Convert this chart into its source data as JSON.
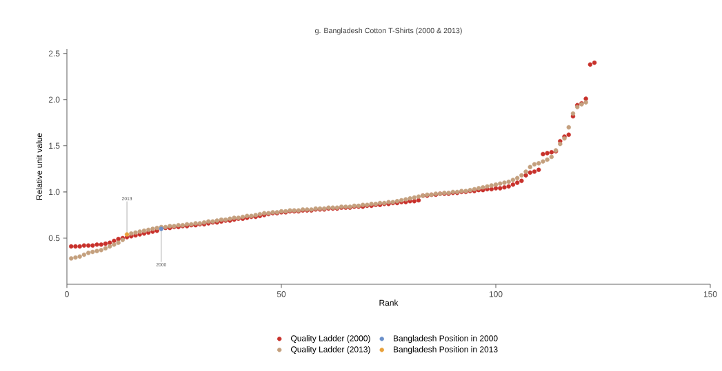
{
  "chart_data": {
    "type": "scatter",
    "title": "g. Bangladesh Cotton T-Shirts (2000 & 2013)",
    "xlabel": "Rank",
    "ylabel": "Relative unit value",
    "xlim": [
      0,
      150
    ],
    "ylim": [
      0,
      2.55
    ],
    "xticks": [
      0,
      50,
      100,
      150
    ],
    "yticks": [
      0.5,
      {
        "value": 1,
        "label": "1.0"
      },
      1.5,
      {
        "value": 2,
        "label": "2.0"
      },
      2.5
    ],
    "marker": "circle",
    "grid": false,
    "legend": "bottom",
    "series": [
      {
        "name": "Quality Ladder (2000)",
        "color": "#c8312b",
        "x": [
          1,
          2,
          3,
          4,
          5,
          6,
          7,
          8,
          9,
          10,
          11,
          12,
          13,
          14,
          15,
          16,
          17,
          18,
          19,
          20,
          21,
          23,
          24,
          25,
          26,
          27,
          28,
          29,
          30,
          31,
          32,
          33,
          34,
          35,
          36,
          37,
          38,
          39,
          40,
          41,
          42,
          43,
          44,
          45,
          46,
          47,
          48,
          49,
          50,
          51,
          52,
          53,
          54,
          55,
          56,
          57,
          58,
          59,
          60,
          61,
          62,
          63,
          64,
          65,
          66,
          67,
          68,
          69,
          70,
          71,
          72,
          73,
          74,
          75,
          76,
          77,
          78,
          79,
          80,
          81,
          82,
          83,
          84,
          85,
          86,
          87,
          88,
          89,
          90,
          91,
          92,
          93,
          94,
          95,
          96,
          97,
          98,
          99,
          100,
          101,
          102,
          103,
          104,
          105,
          106,
          107,
          108,
          109,
          110,
          111,
          112,
          113,
          114,
          115,
          116,
          117,
          118,
          119,
          120,
          121,
          122,
          123
        ],
        "values": [
          0.41,
          0.41,
          0.41,
          0.42,
          0.42,
          0.42,
          0.43,
          0.43,
          0.44,
          0.45,
          0.47,
          0.49,
          0.5,
          0.51,
          0.52,
          0.53,
          0.54,
          0.55,
          0.56,
          0.57,
          0.58,
          0.61,
          0.61,
          0.62,
          0.62,
          0.63,
          0.63,
          0.64,
          0.64,
          0.65,
          0.65,
          0.66,
          0.67,
          0.67,
          0.68,
          0.69,
          0.69,
          0.7,
          0.71,
          0.71,
          0.72,
          0.73,
          0.73,
          0.74,
          0.75,
          0.76,
          0.77,
          0.77,
          0.78,
          0.78,
          0.79,
          0.79,
          0.79,
          0.8,
          0.8,
          0.8,
          0.81,
          0.81,
          0.81,
          0.82,
          0.82,
          0.82,
          0.83,
          0.83,
          0.83,
          0.84,
          0.84,
          0.84,
          0.85,
          0.85,
          0.86,
          0.86,
          0.87,
          0.87,
          0.88,
          0.88,
          0.89,
          0.89,
          0.9,
          0.9,
          0.91,
          0.96,
          0.96,
          0.97,
          0.97,
          0.98,
          0.98,
          0.98,
          0.99,
          0.99,
          1.0,
          1.0,
          1.01,
          1.01,
          1.02,
          1.02,
          1.03,
          1.03,
          1.04,
          1.04,
          1.05,
          1.06,
          1.08,
          1.1,
          1.12,
          1.18,
          1.21,
          1.22,
          1.24,
          1.41,
          1.42,
          1.43,
          1.44,
          1.55,
          1.6,
          1.62,
          1.82,
          1.94,
          1.96,
          2.01,
          2.38,
          2.4
        ]
      },
      {
        "name": "Bangladesh Position in 2000",
        "color": "#6a8fc9",
        "x": [
          22
        ],
        "values": [
          0.6
        ]
      },
      {
        "name": "Quality Ladder (2013)",
        "color": "#c4a07e",
        "x": [
          1,
          2,
          3,
          4,
          5,
          6,
          7,
          8,
          9,
          10,
          11,
          12,
          13,
          15,
          16,
          17,
          18,
          19,
          20,
          21,
          22,
          23,
          24,
          25,
          26,
          27,
          28,
          29,
          30,
          31,
          32,
          33,
          34,
          35,
          36,
          37,
          38,
          39,
          40,
          41,
          42,
          43,
          44,
          45,
          46,
          47,
          48,
          49,
          50,
          51,
          52,
          53,
          54,
          55,
          56,
          57,
          58,
          59,
          60,
          61,
          62,
          63,
          64,
          65,
          66,
          67,
          68,
          69,
          70,
          71,
          72,
          73,
          74,
          75,
          76,
          77,
          78,
          79,
          80,
          81,
          82,
          83,
          84,
          85,
          86,
          87,
          88,
          89,
          90,
          91,
          92,
          93,
          94,
          95,
          96,
          97,
          98,
          99,
          100,
          101,
          102,
          103,
          104,
          105,
          106,
          107,
          108,
          109,
          110,
          111,
          112,
          113,
          114,
          115,
          116,
          117,
          118,
          119,
          120,
          121
        ],
        "values": [
          0.28,
          0.29,
          0.3,
          0.32,
          0.34,
          0.35,
          0.36,
          0.37,
          0.39,
          0.41,
          0.43,
          0.45,
          0.48,
          0.55,
          0.56,
          0.57,
          0.58,
          0.59,
          0.6,
          0.61,
          0.62,
          0.62,
          0.63,
          0.63,
          0.64,
          0.64,
          0.65,
          0.65,
          0.66,
          0.66,
          0.67,
          0.68,
          0.68,
          0.69,
          0.7,
          0.7,
          0.71,
          0.72,
          0.72,
          0.73,
          0.74,
          0.74,
          0.75,
          0.76,
          0.77,
          0.77,
          0.78,
          0.78,
          0.79,
          0.79,
          0.8,
          0.8,
          0.8,
          0.81,
          0.81,
          0.81,
          0.82,
          0.82,
          0.82,
          0.83,
          0.83,
          0.83,
          0.84,
          0.84,
          0.84,
          0.85,
          0.85,
          0.86,
          0.86,
          0.87,
          0.87,
          0.88,
          0.88,
          0.89,
          0.89,
          0.9,
          0.91,
          0.92,
          0.93,
          0.94,
          0.95,
          0.96,
          0.97,
          0.97,
          0.98,
          0.98,
          0.99,
          0.99,
          1.0,
          1.0,
          1.01,
          1.01,
          1.02,
          1.03,
          1.04,
          1.05,
          1.06,
          1.07,
          1.08,
          1.09,
          1.1,
          1.11,
          1.13,
          1.15,
          1.18,
          1.22,
          1.27,
          1.3,
          1.31,
          1.33,
          1.35,
          1.38,
          1.45,
          1.52,
          1.58,
          1.7,
          1.85,
          1.92,
          1.95,
          1.97
        ]
      },
      {
        "name": "Bangladesh Position in 2013",
        "color": "#e8a13a",
        "x": [
          14
        ],
        "values": [
          0.54
        ]
      }
    ],
    "annotations": [
      {
        "text": "2013",
        "x": 14,
        "y": 0.54
      },
      {
        "text": "2000",
        "x": 22,
        "y": 0.6
      }
    ]
  }
}
